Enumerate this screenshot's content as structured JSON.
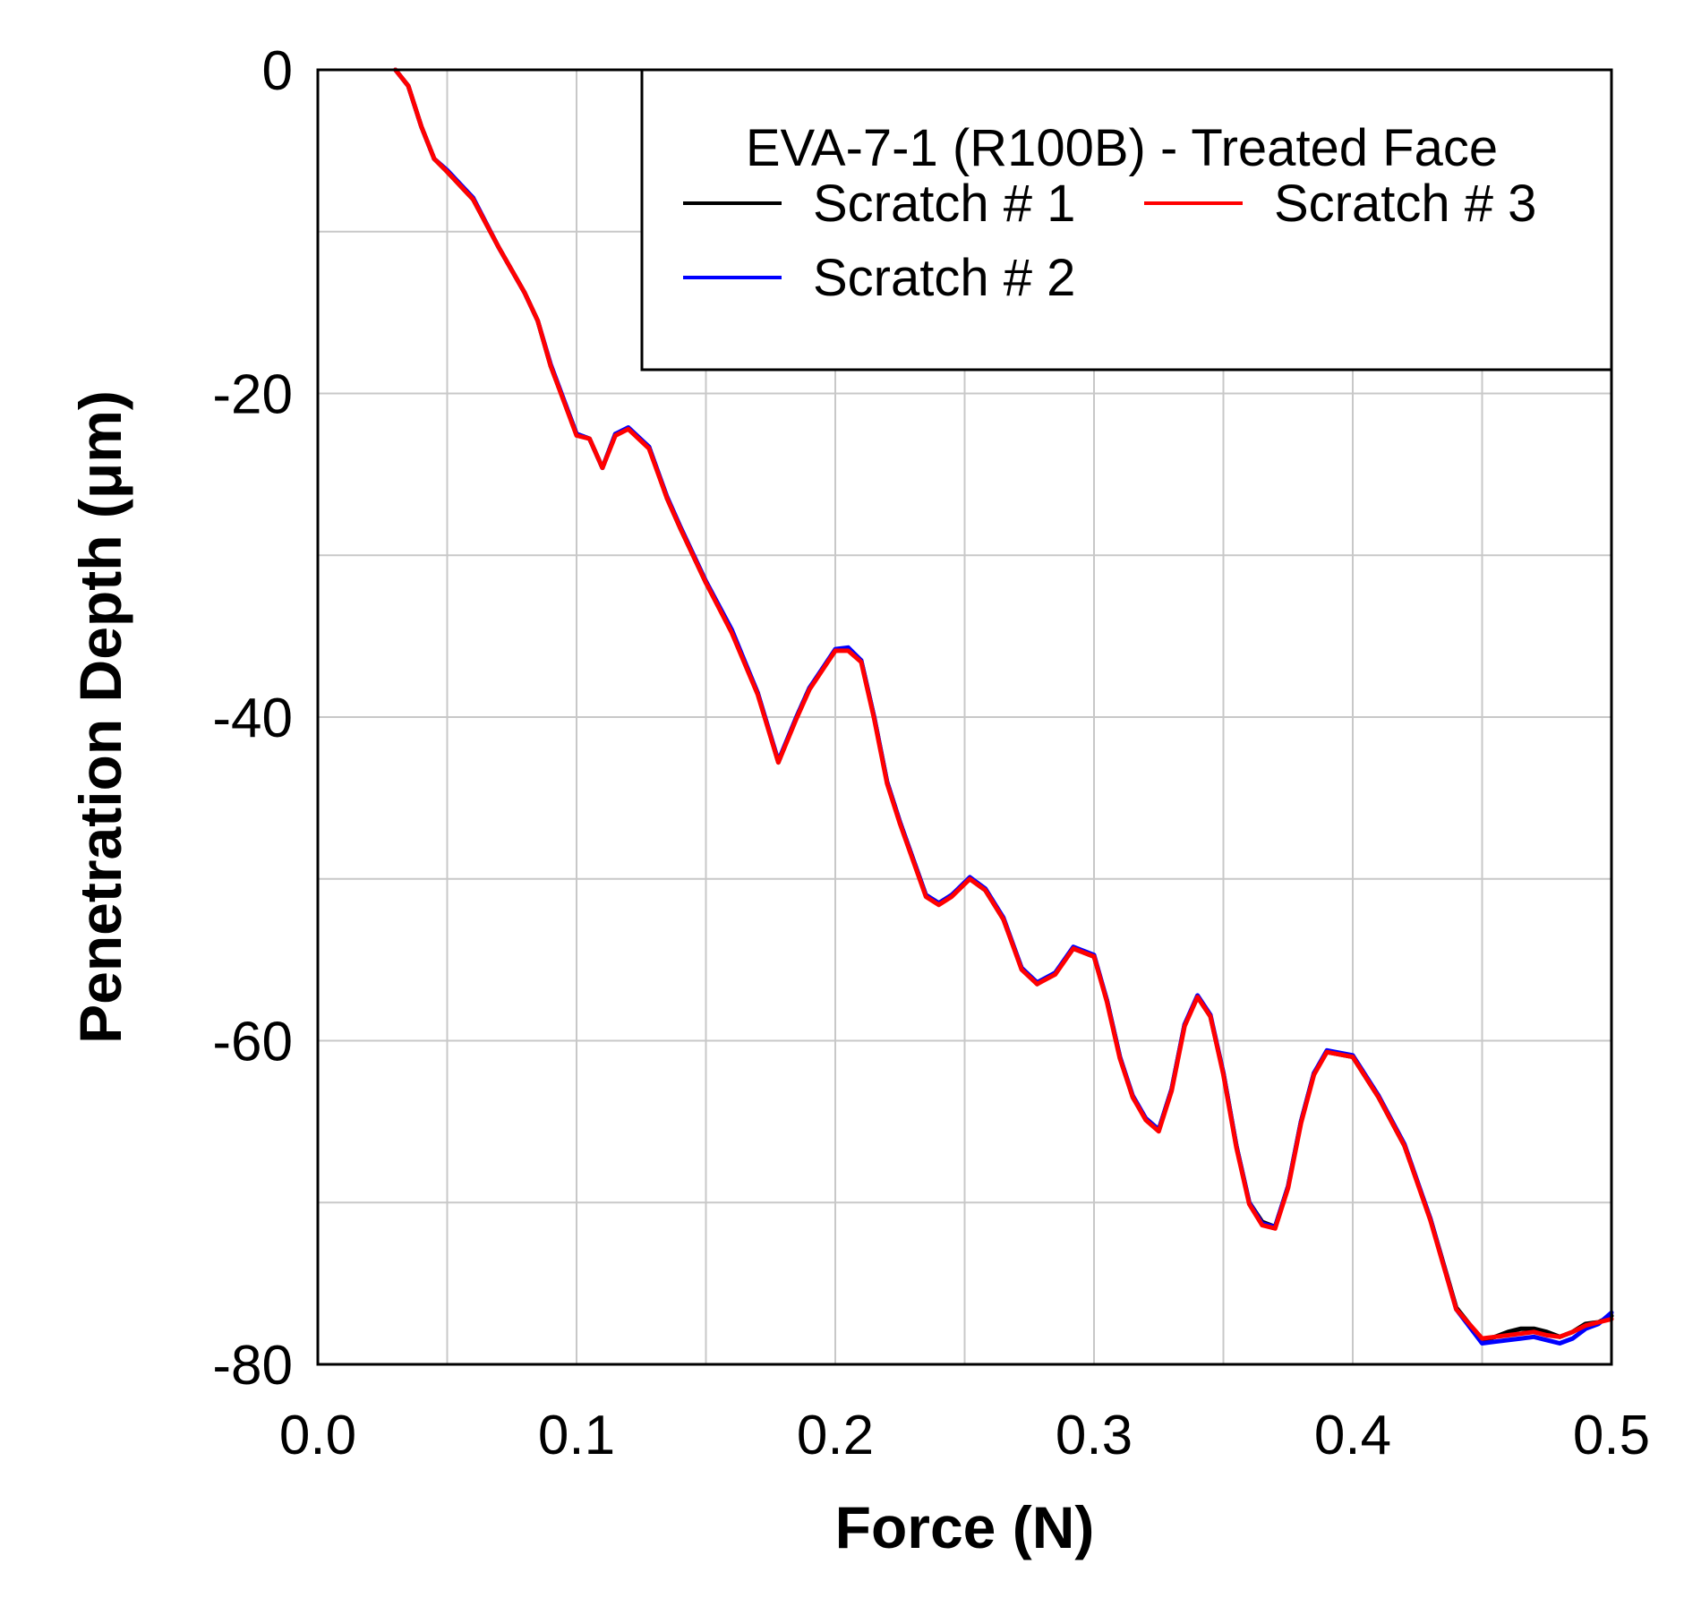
{
  "chart_data": {
    "type": "line",
    "title": "",
    "xlabel": "Force (N)",
    "ylabel": "Penetration Depth (μm)",
    "xlim": [
      0.0,
      0.5
    ],
    "ylim": [
      -80,
      0
    ],
    "xticks": [
      0.0,
      0.1,
      0.2,
      0.3,
      0.4,
      0.5
    ],
    "xtick_labels": [
      "0.0",
      "0.1",
      "0.2",
      "0.3",
      "0.4",
      "0.5"
    ],
    "yticks": [
      0,
      -20,
      -40,
      -60,
      -80
    ],
    "ytick_labels": [
      "0",
      "-20",
      "-40",
      "-60",
      "-80"
    ],
    "grid": true,
    "legend": {
      "title": "EVA-7-1 (R100B) - Treated Face",
      "placement": "top-right"
    },
    "series": [
      {
        "name": "Scratch # 1",
        "color": "#000000",
        "x": [
          0.03,
          0.035,
          0.04,
          0.045,
          0.05,
          0.06,
          0.07,
          0.08,
          0.085,
          0.09,
          0.1,
          0.105,
          0.11,
          0.115,
          0.12,
          0.128,
          0.135,
          0.14,
          0.15,
          0.16,
          0.17,
          0.178,
          0.185,
          0.19,
          0.2,
          0.205,
          0.21,
          0.215,
          0.22,
          0.225,
          0.235,
          0.24,
          0.245,
          0.252,
          0.258,
          0.265,
          0.272,
          0.278,
          0.285,
          0.292,
          0.3,
          0.305,
          0.31,
          0.315,
          0.32,
          0.325,
          0.33,
          0.335,
          0.34,
          0.345,
          0.35,
          0.355,
          0.36,
          0.365,
          0.37,
          0.375,
          0.38,
          0.385,
          0.39,
          0.4,
          0.41,
          0.42,
          0.43,
          0.44,
          0.45,
          0.455,
          0.46,
          0.465,
          0.47,
          0.475,
          0.48,
          0.485,
          0.49,
          0.495,
          0.5
        ],
        "y": [
          0.0,
          -1.0,
          -3.5,
          -5.5,
          -6.3,
          -8.0,
          -11.0,
          -13.8,
          -15.5,
          -18.3,
          -22.5,
          -22.8,
          -24.6,
          -22.5,
          -22.2,
          -23.3,
          -26.5,
          -28.3,
          -31.7,
          -34.7,
          -38.5,
          -42.8,
          -40.0,
          -38.2,
          -35.9,
          -35.8,
          -36.5,
          -40.0,
          -44.0,
          -46.5,
          -51.0,
          -51.5,
          -51.0,
          -50.0,
          -50.7,
          -52.5,
          -55.5,
          -56.5,
          -55.8,
          -54.3,
          -54.8,
          -57.5,
          -61.0,
          -63.5,
          -64.8,
          -65.5,
          -63.0,
          -59.0,
          -57.3,
          -58.5,
          -62.0,
          -66.5,
          -70.0,
          -71.2,
          -71.5,
          -69.0,
          -65.0,
          -62.0,
          -60.7,
          -61.0,
          -63.5,
          -66.5,
          -71.0,
          -76.5,
          -78.5,
          -78.3,
          -78.0,
          -77.8,
          -77.8,
          -78.0,
          -78.3,
          -78.0,
          -77.5,
          -77.4,
          -77.0
        ]
      },
      {
        "name": "Scratch # 2",
        "color": "#0000ff",
        "x": [
          0.03,
          0.035,
          0.04,
          0.045,
          0.05,
          0.06,
          0.07,
          0.08,
          0.085,
          0.09,
          0.1,
          0.105,
          0.11,
          0.115,
          0.12,
          0.128,
          0.135,
          0.14,
          0.15,
          0.16,
          0.17,
          0.178,
          0.185,
          0.19,
          0.2,
          0.205,
          0.21,
          0.215,
          0.22,
          0.225,
          0.235,
          0.24,
          0.245,
          0.252,
          0.258,
          0.265,
          0.272,
          0.278,
          0.285,
          0.292,
          0.3,
          0.305,
          0.31,
          0.315,
          0.32,
          0.325,
          0.33,
          0.335,
          0.34,
          0.345,
          0.35,
          0.355,
          0.36,
          0.365,
          0.37,
          0.375,
          0.38,
          0.385,
          0.39,
          0.4,
          0.41,
          0.42,
          0.43,
          0.44,
          0.45,
          0.455,
          0.46,
          0.465,
          0.47,
          0.475,
          0.48,
          0.485,
          0.49,
          0.495,
          0.5
        ],
        "y": [
          0.0,
          -1.0,
          -3.5,
          -5.5,
          -6.2,
          -7.9,
          -11.0,
          -13.8,
          -15.5,
          -18.2,
          -22.5,
          -22.8,
          -24.6,
          -22.5,
          -22.1,
          -23.3,
          -26.4,
          -28.2,
          -31.6,
          -34.6,
          -38.5,
          -42.7,
          -40.0,
          -38.2,
          -35.8,
          -35.7,
          -36.5,
          -40.0,
          -44.0,
          -46.5,
          -51.0,
          -51.5,
          -51.0,
          -49.9,
          -50.6,
          -52.4,
          -55.5,
          -56.4,
          -55.8,
          -54.2,
          -54.7,
          -57.5,
          -61.0,
          -63.4,
          -64.8,
          -65.5,
          -63.0,
          -59.0,
          -57.2,
          -58.4,
          -62.0,
          -66.5,
          -70.0,
          -71.3,
          -71.5,
          -69.0,
          -65.0,
          -62.0,
          -60.6,
          -60.9,
          -63.4,
          -66.4,
          -71.0,
          -76.6,
          -78.7,
          -78.6,
          -78.5,
          -78.4,
          -78.3,
          -78.5,
          -78.7,
          -78.4,
          -77.8,
          -77.5,
          -76.8
        ]
      },
      {
        "name": "Scratch # 3",
        "color": "#ff0000",
        "x": [
          0.03,
          0.035,
          0.04,
          0.045,
          0.05,
          0.06,
          0.07,
          0.08,
          0.085,
          0.09,
          0.1,
          0.105,
          0.11,
          0.115,
          0.12,
          0.128,
          0.135,
          0.14,
          0.15,
          0.16,
          0.17,
          0.178,
          0.185,
          0.19,
          0.2,
          0.205,
          0.21,
          0.215,
          0.22,
          0.225,
          0.235,
          0.24,
          0.245,
          0.252,
          0.258,
          0.265,
          0.272,
          0.278,
          0.285,
          0.292,
          0.3,
          0.305,
          0.31,
          0.315,
          0.32,
          0.325,
          0.33,
          0.335,
          0.34,
          0.345,
          0.35,
          0.355,
          0.36,
          0.365,
          0.37,
          0.375,
          0.38,
          0.385,
          0.39,
          0.4,
          0.41,
          0.42,
          0.43,
          0.44,
          0.45,
          0.455,
          0.46,
          0.465,
          0.47,
          0.475,
          0.48,
          0.485,
          0.49,
          0.495,
          0.5
        ],
        "y": [
          0.0,
          -1.0,
          -3.5,
          -5.5,
          -6.3,
          -8.0,
          -11.0,
          -13.8,
          -15.5,
          -18.3,
          -22.6,
          -22.8,
          -24.6,
          -22.6,
          -22.2,
          -23.4,
          -26.5,
          -28.3,
          -31.7,
          -34.8,
          -38.6,
          -42.8,
          -40.1,
          -38.3,
          -35.9,
          -35.9,
          -36.6,
          -40.1,
          -44.1,
          -46.6,
          -51.1,
          -51.6,
          -51.1,
          -50.0,
          -50.7,
          -52.5,
          -55.6,
          -56.5,
          -55.9,
          -54.3,
          -54.8,
          -57.6,
          -61.1,
          -63.5,
          -64.9,
          -65.6,
          -63.1,
          -59.1,
          -57.3,
          -58.5,
          -62.1,
          -66.6,
          -70.1,
          -71.4,
          -71.6,
          -69.1,
          -65.1,
          -62.1,
          -60.7,
          -61.0,
          -63.5,
          -66.5,
          -71.1,
          -76.6,
          -78.4,
          -78.3,
          -78.2,
          -78.1,
          -78.0,
          -78.2,
          -78.3,
          -78.0,
          -77.6,
          -77.4,
          -77.2
        ]
      }
    ]
  }
}
